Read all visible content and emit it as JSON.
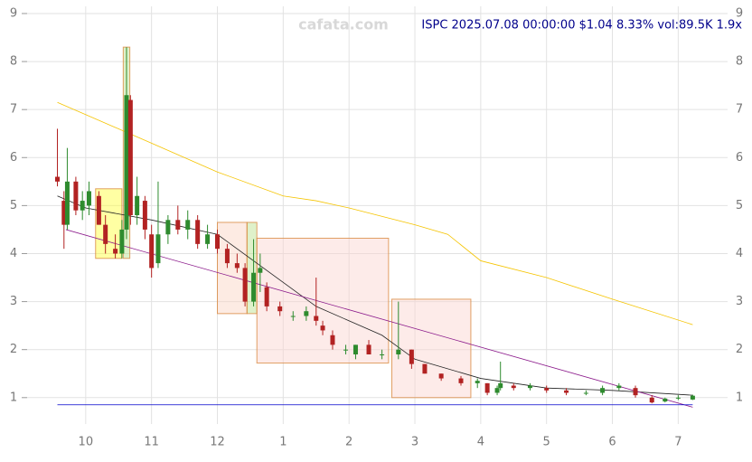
{
  "chart_data": {
    "type": "candlestick",
    "title": "ISPC 2025.07.08 00:00:00 $1.04 8.33% vol:89.5K 1.9x",
    "watermark": "cafata.com",
    "xlim": [
      -0.89,
      9.75
    ],
    "ylim": [
      0.45,
      9.15
    ],
    "xticks": [
      {
        "value": 0,
        "label": "10"
      },
      {
        "value": 1,
        "label": "11"
      },
      {
        "value": 2,
        "label": "12"
      },
      {
        "value": 3,
        "label": "1"
      },
      {
        "value": 4,
        "label": "2"
      },
      {
        "value": 5,
        "label": "3"
      },
      {
        "value": 6,
        "label": "4"
      },
      {
        "value": 7,
        "label": "5"
      },
      {
        "value": 8,
        "label": "6"
      },
      {
        "value": 9,
        "label": "7"
      }
    ],
    "yticks": [
      1,
      2,
      3,
      4,
      5,
      6,
      7,
      8,
      9
    ],
    "grid": true,
    "up_color": "#2e8b2e",
    "down_color": "#b22222",
    "x": [
      -0.43,
      -0.33,
      -0.28,
      -0.15,
      -0.05,
      0.05,
      0.2,
      0.3,
      0.45,
      0.55,
      0.62,
      0.68,
      0.78,
      0.9,
      1.0,
      1.1,
      1.25,
      1.4,
      1.55,
      1.7,
      1.85,
      2.0,
      2.15,
      2.3,
      2.42,
      2.55,
      2.65,
      2.75,
      2.95,
      3.15,
      3.35,
      3.5,
      3.6,
      3.75,
      3.95,
      4.1,
      4.3,
      4.5,
      4.75,
      4.95,
      5.15,
      5.4,
      5.7,
      5.95,
      6.1,
      6.25,
      6.3,
      6.5,
      6.75,
      7.0,
      7.3,
      7.6,
      7.85,
      8.1,
      8.35,
      8.6,
      8.8,
      9.0,
      9.22
    ],
    "open": [
      5.6,
      5.1,
      4.6,
      5.5,
      4.9,
      5.0,
      5.2,
      4.6,
      4.1,
      4.0,
      4.5,
      7.2,
      4.8,
      5.1,
      4.4,
      3.8,
      4.4,
      4.7,
      4.5,
      4.7,
      4.2,
      4.4,
      4.1,
      3.8,
      3.7,
      3.0,
      3.6,
      3.3,
      2.9,
      2.7,
      2.7,
      2.7,
      2.5,
      2.3,
      2.0,
      1.9,
      2.1,
      1.9,
      1.9,
      2.0,
      1.7,
      1.5,
      1.4,
      1.3,
      1.3,
      1.1,
      1.2,
      1.25,
      1.2,
      1.2,
      1.15,
      1.1,
      1.1,
      1.2,
      1.2,
      1.0,
      0.92,
      0.98,
      0.96
    ],
    "high": [
      6.6,
      5.3,
      6.2,
      5.6,
      5.3,
      5.5,
      5.3,
      4.8,
      4.4,
      4.7,
      8.3,
      7.3,
      5.6,
      5.2,
      4.6,
      5.5,
      4.8,
      5.0,
      4.9,
      4.8,
      4.6,
      4.5,
      4.2,
      4.0,
      3.8,
      4.3,
      4.0,
      3.4,
      3.0,
      2.8,
      2.9,
      3.5,
      2.6,
      2.4,
      2.1,
      2.1,
      2.2,
      2.0,
      3.0,
      2.0,
      1.7,
      1.5,
      1.45,
      1.4,
      1.3,
      1.25,
      1.75,
      1.3,
      1.3,
      1.25,
      1.2,
      1.15,
      1.25,
      1.3,
      1.25,
      1.05,
      1.0,
      1.05,
      1.06
    ],
    "low": [
      5.4,
      4.1,
      4.5,
      4.8,
      4.7,
      4.8,
      4.6,
      4.0,
      3.9,
      3.9,
      4.3,
      4.6,
      4.6,
      4.3,
      3.5,
      3.7,
      4.2,
      4.4,
      4.3,
      4.1,
      4.1,
      4.0,
      3.7,
      3.6,
      2.9,
      2.9,
      3.2,
      2.8,
      2.7,
      2.6,
      2.6,
      2.5,
      2.3,
      2.0,
      1.9,
      1.8,
      1.9,
      1.8,
      1.8,
      1.6,
      1.5,
      1.35,
      1.25,
      1.2,
      1.05,
      1.05,
      1.15,
      1.15,
      1.15,
      1.1,
      1.05,
      1.05,
      1.05,
      1.15,
      1.0,
      0.88,
      0.9,
      0.95,
      0.95
    ],
    "close": [
      5.5,
      4.6,
      5.5,
      4.9,
      5.1,
      5.3,
      4.6,
      4.2,
      4.0,
      4.5,
      7.3,
      4.8,
      5.2,
      4.5,
      3.7,
      4.4,
      4.7,
      4.5,
      4.7,
      4.2,
      4.4,
      4.1,
      3.8,
      3.7,
      3.0,
      3.6,
      3.7,
      2.9,
      2.8,
      2.7,
      2.8,
      2.6,
      2.4,
      2.1,
      2.0,
      2.1,
      1.9,
      1.9,
      2.0,
      1.7,
      1.5,
      1.4,
      1.3,
      1.35,
      1.1,
      1.2,
      1.3,
      1.2,
      1.25,
      1.15,
      1.1,
      1.1,
      1.2,
      1.25,
      1.05,
      0.9,
      0.98,
      1.0,
      1.04
    ],
    "lines": [
      {
        "color": "#f5c400",
        "x": [
          -0.43,
          1,
          2,
          3,
          3.5,
          4,
          5,
          5.5,
          6,
          7,
          8,
          9.22
        ],
        "values": [
          7.15,
          6.3,
          5.7,
          5.2,
          5.1,
          4.95,
          4.6,
          4.4,
          3.85,
          3.5,
          3.05,
          2.52
        ]
      },
      {
        "color": "#222222",
        "x": [
          -0.43,
          0,
          1,
          2,
          2.7,
          3.5,
          4.5,
          5,
          6,
          7,
          8,
          9.22
        ],
        "values": [
          5.2,
          4.95,
          4.7,
          4.4,
          3.7,
          2.9,
          2.3,
          1.8,
          1.4,
          1.2,
          1.15,
          1.05
        ]
      },
      {
        "color": "#8b1a8b",
        "x": [
          -0.3,
          9.22
        ],
        "values": [
          4.5,
          0.8
        ]
      },
      {
        "color": "#0000cc",
        "x": [
          -0.43,
          9.22
        ],
        "values": [
          0.85,
          0.85
        ]
      }
    ],
    "zones": [
      {
        "color": "#ffff33",
        "x": [
          0.15,
          0.55
        ],
        "values": [
          3.9,
          5.35
        ]
      },
      {
        "color": "#b8e08a",
        "x": [
          0.57,
          0.67
        ],
        "values": [
          3.9,
          8.3
        ]
      },
      {
        "color": "#fbd3c0",
        "x": [
          2.0,
          2.45
        ],
        "values": [
          2.75,
          4.65
        ]
      },
      {
        "color": "#b8e08a",
        "x": [
          2.45,
          2.6
        ],
        "values": [
          2.75,
          4.65
        ]
      },
      {
        "color": "#fbd3cf",
        "x": [
          2.6,
          4.6
        ],
        "values": [
          1.72,
          4.32
        ]
      },
      {
        "color": "#fbd3cf",
        "x": [
          4.65,
          5.85
        ],
        "values": [
          1.0,
          3.05
        ]
      }
    ]
  }
}
